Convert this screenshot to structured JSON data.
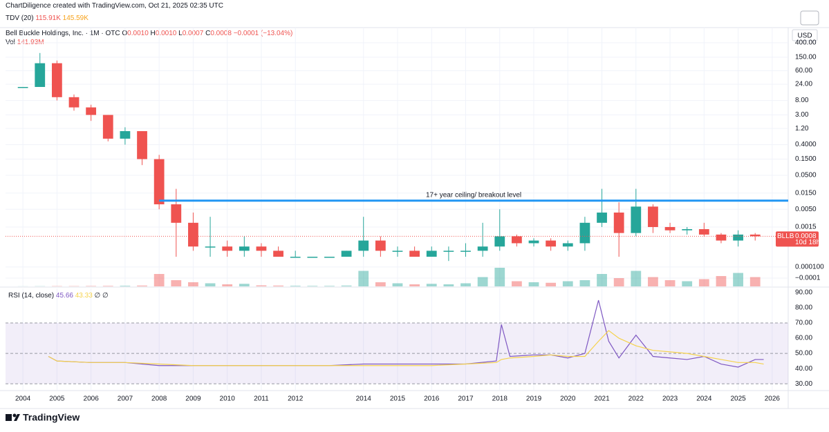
{
  "header": {
    "credit": "ChartDiligence created with TradingView.com, Oct 21, 2025 02:35 UTC",
    "tdv": {
      "name": "TDV (20)",
      "values": [
        "115.91K",
        "145.59K"
      ]
    },
    "symbol": "Bell Buckle Holdings, Inc. · 1M · OTC",
    "ohlc": [
      {
        "k": "O",
        "v": "0.0010"
      },
      {
        "k": "H",
        "v": "0.0010"
      },
      {
        "k": "L",
        "v": "0.0007"
      },
      {
        "k": "C",
        "v": "0.0008"
      }
    ],
    "change": "−0.0001 (−13.04%)",
    "vol": {
      "name": "Vol",
      "value": "141.93M"
    },
    "currency": "USD",
    "ticker": "BLLB",
    "countdown": "10d 18h",
    "brand": "TradingView"
  },
  "chart_data": [
    {
      "type": "candlestick",
      "log_scale": true,
      "grid": true,
      "up_color": "#26a69a",
      "down_color": "#ef5350",
      "x": [
        2004,
        2004.5,
        2005,
        2005.5,
        2006,
        2006.5,
        2007,
        2007.5,
        2008,
        2008.5,
        2009,
        2009.5,
        2010,
        2010.5,
        2011,
        2011.5,
        2012,
        2012.5,
        2013,
        2013.5,
        2014,
        2014.5,
        2015,
        2015.5,
        2016,
        2016.5,
        2017,
        2017.5,
        2018,
        2018.5,
        2019,
        2019.5,
        2020,
        2020.5,
        2021,
        2021.5,
        2022,
        2022.5,
        2023,
        2023.5,
        2024,
        2024.5,
        2025,
        2025.5
      ],
      "open": [
        20,
        20,
        100,
        10,
        5,
        3,
        0.6,
        1,
        0.15,
        0.007,
        0.002,
        0.0004,
        0.0004,
        0.0003,
        0.0004,
        0.0003,
        0.0002,
        0.0002,
        0.0002,
        0.0002,
        0.0003,
        0.0006,
        0.0003,
        0.0003,
        0.0002,
        0.0003,
        0.0003,
        0.0003,
        0.0004,
        0.0008,
        0.0005,
        0.0006,
        0.0004,
        0.0005,
        0.002,
        0.004,
        0.001,
        0.006,
        0.0015,
        0.0012,
        0.0013,
        0.0009,
        0.0006,
        0.0009
      ],
      "high": [
        20,
        200,
        120,
        12,
        6,
        3,
        1.3,
        1,
        0.2,
        0.02,
        0.004,
        0.003,
        0.0006,
        0.0008,
        0.0005,
        0.0004,
        0.0003,
        0.0002,
        0.0002,
        0.0003,
        0.003,
        0.0008,
        0.0004,
        0.0004,
        0.0004,
        0.0004,
        0.0005,
        0.002,
        0.005,
        0.0009,
        0.0007,
        0.0007,
        0.0006,
        0.003,
        0.02,
        0.008,
        0.02,
        0.007,
        0.002,
        0.0015,
        0.002,
        0.001,
        0.0012,
        0.001
      ],
      "low": [
        20,
        20,
        8,
        4,
        2,
        0.5,
        0.4,
        0.1,
        0.005,
        0.0002,
        0.0003,
        0.0002,
        0.0002,
        0.0002,
        0.0002,
        0.0002,
        0.0002,
        0.0002,
        0.0002,
        0.0002,
        0.0002,
        0.0002,
        0.0002,
        0.0002,
        0.0002,
        0.00015,
        0.0002,
        0.0002,
        0.0003,
        0.0004,
        0.0004,
        0.0003,
        0.0003,
        0.0003,
        0.0015,
        0.0002,
        0.0008,
        0.001,
        0.001,
        0.0009,
        0.0008,
        0.0005,
        0.0004,
        0.0006
      ],
      "close": [
        20,
        100,
        10,
        5,
        3,
        0.6,
        1,
        0.15,
        0.007,
        0.002,
        0.0004,
        0.0004,
        0.0003,
        0.0004,
        0.0003,
        0.0002,
        0.0002,
        0.0002,
        0.0002,
        0.0003,
        0.0006,
        0.0003,
        0.0003,
        0.0002,
        0.0003,
        0.0003,
        0.0003,
        0.0004,
        0.0008,
        0.0005,
        0.0006,
        0.0004,
        0.0005,
        0.002,
        0.004,
        0.001,
        0.006,
        0.0015,
        0.0012,
        0.0013,
        0.0009,
        0.0006,
        0.0009,
        0.0008
      ],
      "volume": [
        1,
        2,
        3,
        3,
        4,
        5,
        6,
        8,
        120,
        60,
        40,
        30,
        20,
        25,
        10,
        8,
        6,
        5,
        5,
        8,
        150,
        40,
        30,
        20,
        25,
        20,
        30,
        90,
        180,
        50,
        40,
        35,
        50,
        60,
        120,
        80,
        150,
        90,
        60,
        50,
        70,
        100,
        130,
        90
      ],
      "vlim": [
        0,
        400
      ],
      "xlim": [
        2003.49,
        2026.47
      ],
      "xticks": [
        2004,
        2005,
        2006,
        2007,
        2008,
        2009,
        2010,
        2011,
        2012,
        2014,
        2015,
        2016,
        2017,
        2018,
        2019,
        2020,
        2021,
        2022,
        2023,
        2024,
        2025,
        2026
      ],
      "ylim": [
        2.68e-05,
        972
      ],
      "yticks": [
        {
          "value": 400,
          "label": "400.00"
        },
        {
          "value": 150,
          "label": "150.00"
        },
        {
          "value": 60,
          "label": "60.00"
        },
        {
          "value": 24,
          "label": "24.00"
        },
        {
          "value": 8,
          "label": "8.00"
        },
        {
          "value": 3,
          "label": "3.00"
        },
        {
          "value": 1.2,
          "label": "1.20"
        },
        {
          "value": 0.4,
          "label": "0.4000"
        },
        {
          "value": 0.15,
          "label": "0.1500"
        },
        {
          "value": 0.05,
          "label": "0.0500"
        },
        {
          "value": 0.015,
          "label": "0.0150"
        },
        {
          "value": 0.005,
          "label": "0.0050"
        },
        {
          "value": 0.0015,
          "label": "0.0015"
        },
        {
          "value": 0.0001,
          "label": "0.000100"
        },
        {
          "value": -0.0001,
          "label": "−0.0001"
        }
      ],
      "annotation": {
        "text": "17+ year ceiling/ breakout level",
        "level": 0.009,
        "from": 2008,
        "color": "#2196f3"
      }
    },
    {
      "type": "line",
      "title": "RSI (14, close)",
      "value_labels": [
        "45.66",
        "43.33",
        "∅",
        "∅"
      ],
      "x": [
        2004.75,
        2005,
        2006,
        2007,
        2008,
        2009,
        2010,
        2011,
        2012,
        2013,
        2014,
        2015,
        2016,
        2017,
        2017.9,
        2018.05,
        2018.3,
        2019,
        2019.5,
        2020,
        2020.5,
        2020.9,
        2021.2,
        2021.5,
        2022,
        2022.5,
        2023,
        2023.5,
        2024,
        2024.5,
        2025,
        2025.5,
        2025.75
      ],
      "series": [
        {
          "name": "RSI",
          "color": "#7e57c2",
          "values": [
            48,
            45,
            44,
            44,
            42,
            42,
            42,
            42,
            42,
            42,
            43,
            43,
            43,
            43,
            45,
            69,
            48,
            49,
            49,
            47,
            50,
            85,
            58,
            47,
            62,
            48,
            47,
            46,
            48,
            43,
            41,
            46,
            46
          ]
        },
        {
          "name": "RSI-based MA",
          "color": "#f5d24b",
          "values": [
            48,
            45,
            44,
            44,
            43,
            42,
            42,
            42,
            42,
            42,
            42,
            42,
            42,
            43,
            44,
            46,
            47,
            48,
            49,
            48,
            48,
            58,
            65,
            60,
            55,
            52,
            51,
            50,
            48,
            46,
            44,
            44,
            43
          ]
        }
      ],
      "xlim": [
        2003.49,
        2026.47
      ],
      "ylim": [
        26,
        92.7
      ],
      "yticks": [
        {
          "value": 90,
          "label": "90.00"
        },
        {
          "value": 80,
          "label": "80.00"
        },
        {
          "value": 70,
          "label": "70.00"
        },
        {
          "value": 60,
          "label": "60.00"
        },
        {
          "value": 50,
          "label": "50.00"
        },
        {
          "value": 40,
          "label": "40.00"
        },
        {
          "value": 30,
          "label": "30.00"
        }
      ],
      "band": [
        30,
        70
      ]
    }
  ]
}
